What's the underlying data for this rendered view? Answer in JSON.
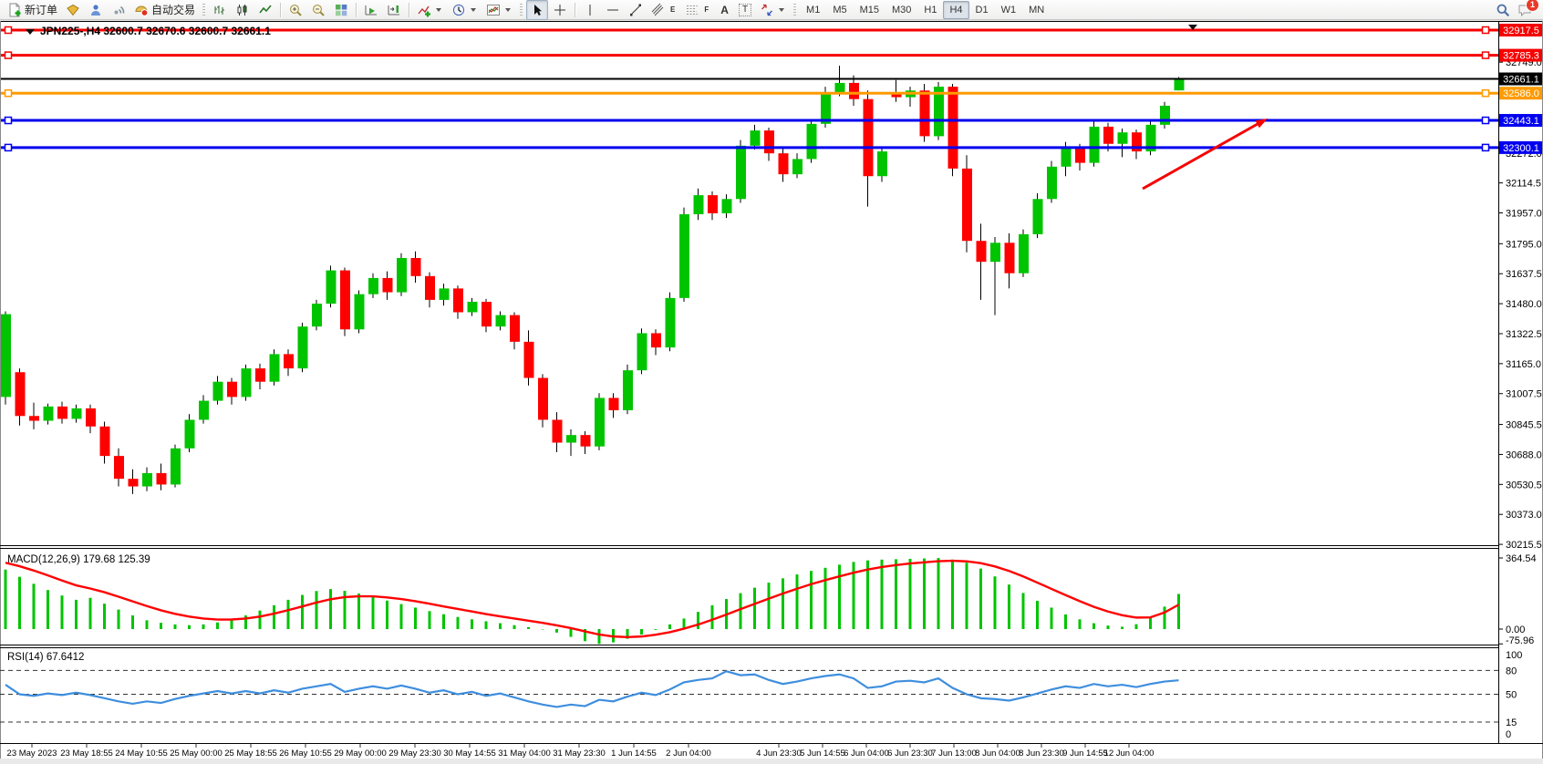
{
  "toolbar": {
    "new_order_label": "新订单",
    "autotrading_label": "自动交易",
    "timeframes": [
      "M1",
      "M5",
      "M15",
      "M30",
      "H1",
      "H4",
      "D1",
      "W1",
      "MN"
    ],
    "active_timeframe": "H4",
    "notification_count": "1",
    "tool_letters": {
      "channel": "E",
      "fibonacci": "F",
      "text": "A",
      "text_label": "T"
    }
  },
  "chart": {
    "title": "JPN225-,H4 32600.7 32670.6 32600.7 32661.1",
    "symbol": "JPN225-",
    "period": "H4",
    "ohlc": {
      "open": "32600.7",
      "high": "32670.6",
      "low": "32600.7",
      "close": "32661.1"
    },
    "levels": [
      {
        "label": "32917.5",
        "price": 32917.5,
        "color": "#f60000",
        "current": false
      },
      {
        "label": "32785.3",
        "price": 32785.3,
        "color": "#f60000",
        "current": false
      },
      {
        "label": "32661.1",
        "price": 32661.1,
        "color": "#000000",
        "current": true
      },
      {
        "label": "32586.0",
        "price": 32586.0,
        "color": "#ff9a00",
        "current": false
      },
      {
        "label": "32443.1",
        "price": 32443.1,
        "color": "#0000f0",
        "current": false
      },
      {
        "label": "32300.1",
        "price": 32300.1,
        "color": "#0000f0",
        "current": false
      }
    ],
    "axis_ticks": [
      "32749.0",
      "32272.0",
      "32114.5",
      "31957.0",
      "31795.0",
      "31637.5",
      "31480.0",
      "31322.5",
      "31165.0",
      "31007.5",
      "30845.5",
      "30688.0",
      "30530.5",
      "30373.0",
      "30215.5"
    ]
  },
  "macd": {
    "label": "MACD(12,26,9) 179.68 125.39",
    "axis": [
      "364.54",
      "0.00",
      "-75.96"
    ]
  },
  "rsi": {
    "label": "RSI(14) 67.6412",
    "axis": [
      "100",
      "80",
      "50",
      "15",
      "0"
    ]
  },
  "time_axis": [
    {
      "t": "23 May 2023",
      "x": 35
    },
    {
      "t": "23 May 18:55",
      "x": 95
    },
    {
      "t": "24 May 10:55",
      "x": 155
    },
    {
      "t": "25 May 00:00",
      "x": 215
    },
    {
      "t": "25 May 18:55",
      "x": 275
    },
    {
      "t": "26 May 10:55",
      "x": 335
    },
    {
      "t": "29 May 00:00",
      "x": 395
    },
    {
      "t": "29 May 23:30",
      "x": 455
    },
    {
      "t": "30 May 14:55",
      "x": 515
    },
    {
      "t": "31 May 04:00",
      "x": 575
    },
    {
      "t": "31 May 23:30",
      "x": 635
    },
    {
      "t": "1 Jun 14:55",
      "x": 695
    },
    {
      "t": "2 Jun 04:00",
      "x": 755
    },
    {
      "t": "4 Jun 23:30",
      "x": 854
    },
    {
      "t": "5 Jun 14:55",
      "x": 902
    },
    {
      "t": "6 Jun 04:00",
      "x": 950
    },
    {
      "t": "6 Jun 23:30",
      "x": 998
    },
    {
      "t": "7 Jun 13:00",
      "x": 1046
    },
    {
      "t": "8 Jun 04:00",
      "x": 1094
    },
    {
      "t": "8 Jun 23:30",
      "x": 1142
    },
    {
      "t": "9 Jun 14:55",
      "x": 1190
    },
    {
      "t": "12 Jun 04:00",
      "x": 1238
    }
  ],
  "chart_data": [
    {
      "type": "candlestick",
      "title": "JPN225- H4",
      "ylim": [
        30215.5,
        32917.5
      ],
      "levels": [
        32917.5,
        32785.3,
        32661.1,
        32586.0,
        32443.1,
        32300.1
      ],
      "candles": [
        [
          30990,
          31440,
          30950,
          31425
        ],
        [
          31120,
          31140,
          30840,
          30890
        ],
        [
          30890,
          30960,
          30820,
          30865
        ],
        [
          30865,
          30955,
          30845,
          30940
        ],
        [
          30940,
          30965,
          30850,
          30875
        ],
        [
          30875,
          30950,
          30855,
          30930
        ],
        [
          30930,
          30950,
          30800,
          30835
        ],
        [
          30835,
          30860,
          30640,
          30680
        ],
        [
          30680,
          30720,
          30520,
          30560
        ],
        [
          30560,
          30610,
          30480,
          30520
        ],
        [
          30520,
          30620,
          30495,
          30590
        ],
        [
          30590,
          30640,
          30500,
          30530
        ],
        [
          30530,
          30740,
          30515,
          30720
        ],
        [
          30720,
          30900,
          30700,
          30870
        ],
        [
          30870,
          31000,
          30850,
          30970
        ],
        [
          30970,
          31100,
          30950,
          31070
        ],
        [
          31070,
          31090,
          30950,
          30990
        ],
        [
          30990,
          31160,
          30970,
          31140
        ],
        [
          31140,
          31165,
          31030,
          31070
        ],
        [
          31070,
          31240,
          31050,
          31215
        ],
        [
          31215,
          31240,
          31100,
          31140
        ],
        [
          31140,
          31380,
          31120,
          31360
        ],
        [
          31360,
          31500,
          31340,
          31480
        ],
        [
          31480,
          31680,
          31460,
          31655
        ],
        [
          31655,
          31670,
          31310,
          31345
        ],
        [
          31345,
          31550,
          31325,
          31530
        ],
        [
          31530,
          31640,
          31510,
          31615
        ],
        [
          31615,
          31650,
          31500,
          31540
        ],
        [
          31540,
          31745,
          31520,
          31720
        ],
        [
          31720,
          31755,
          31590,
          31625
        ],
        [
          31625,
          31645,
          31460,
          31500
        ],
        [
          31500,
          31585,
          31470,
          31560
        ],
        [
          31560,
          31575,
          31400,
          31435
        ],
        [
          31435,
          31510,
          31415,
          31490
        ],
        [
          31490,
          31505,
          31330,
          31360
        ],
        [
          31360,
          31440,
          31340,
          31420
        ],
        [
          31420,
          31435,
          31240,
          31280
        ],
        [
          31280,
          31340,
          31050,
          31090
        ],
        [
          31090,
          31110,
          30830,
          30870
        ],
        [
          30870,
          30910,
          30700,
          30750
        ],
        [
          30750,
          30820,
          30680,
          30790
        ],
        [
          30790,
          30810,
          30690,
          30730
        ],
        [
          30730,
          31010,
          30710,
          30985
        ],
        [
          30985,
          31010,
          30880,
          30920
        ],
        [
          30920,
          31160,
          30900,
          31130
        ],
        [
          31130,
          31350,
          31110,
          31325
        ],
        [
          31325,
          31345,
          31210,
          31250
        ],
        [
          31250,
          31540,
          31230,
          31510
        ],
        [
          31510,
          31985,
          31490,
          31950
        ],
        [
          31950,
          32085,
          31920,
          32050
        ],
        [
          32050,
          32070,
          31920,
          31955
        ],
        [
          31955,
          32055,
          31930,
          32030
        ],
        [
          32030,
          32340,
          32010,
          32310
        ],
        [
          32310,
          32420,
          32290,
          32390
        ],
        [
          32390,
          32405,
          32230,
          32270
        ],
        [
          32270,
          32300,
          32120,
          32160
        ],
        [
          32160,
          32270,
          32140,
          32240
        ],
        [
          32240,
          32450,
          32220,
          32425
        ],
        [
          32425,
          32620,
          32405,
          32590
        ],
        [
          32590,
          32730,
          32570,
          32640
        ],
        [
          32640,
          32680,
          32520,
          32555
        ],
        [
          32555,
          32600,
          31990,
          32150
        ],
        [
          32150,
          32300,
          32120,
          32280
        ],
        [
          32590,
          32655,
          32540,
          32565
        ],
        [
          32565,
          32620,
          32515,
          32600
        ],
        [
          32600,
          32635,
          32330,
          32360
        ],
        [
          32360,
          32645,
          32340,
          32620
        ],
        [
          32620,
          32635,
          32150,
          32190
        ],
        [
          32190,
          32260,
          31750,
          31810
        ],
        [
          31810,
          31900,
          31500,
          31700
        ],
        [
          31700,
          31830,
          31420,
          31800
        ],
        [
          31800,
          31850,
          31560,
          31640
        ],
        [
          31640,
          31870,
          31620,
          31845
        ],
        [
          31845,
          32060,
          31825,
          32030
        ],
        [
          32030,
          32230,
          32010,
          32200
        ],
        [
          32200,
          32330,
          32150,
          32300
        ],
        [
          32300,
          32320,
          32180,
          32220
        ],
        [
          32220,
          32440,
          32200,
          32410
        ],
        [
          32410,
          32430,
          32280,
          32320
        ],
        [
          32320,
          32400,
          32250,
          32380
        ],
        [
          32380,
          32395,
          32240,
          32280
        ],
        [
          32280,
          32450,
          32260,
          32420
        ],
        [
          32420,
          32540,
          32400,
          32520
        ],
        [
          32600.7,
          32670.6,
          32600.7,
          32661.1
        ]
      ]
    },
    {
      "type": "bar",
      "name": "MACD(12,26,9)",
      "current": [
        179.68,
        125.39
      ],
      "ylim": [
        -75.96,
        364.54
      ],
      "values": [
        305,
        268,
        232,
        200,
        172,
        150,
        160,
        130,
        100,
        70,
        45,
        32,
        24,
        20,
        24,
        34,
        50,
        70,
        95,
        122,
        150,
        175,
        195,
        205,
        196,
        182,
        165,
        146,
        128,
        110,
        92,
        76,
        62,
        50,
        40,
        30,
        20,
        10,
        -2,
        -18,
        -40,
        -62,
        -76,
        -68,
        -50,
        -28,
        -4,
        24,
        54,
        88,
        122,
        154,
        184,
        212,
        238,
        260,
        280,
        298,
        314,
        330,
        344,
        352,
        356,
        358,
        360,
        362,
        364,
        356,
        340,
        310,
        270,
        228,
        185,
        145,
        110,
        75,
        50,
        30,
        18,
        12,
        25,
        60,
        115,
        180
      ],
      "signal": [
        340,
        322,
        300,
        275,
        249,
        224,
        208,
        189,
        166,
        142,
        118,
        96,
        78,
        64,
        54,
        49,
        49,
        54,
        64,
        79,
        97,
        116,
        136,
        153,
        164,
        168,
        168,
        162,
        154,
        143,
        130,
        116,
        103,
        90,
        77,
        65,
        54,
        43,
        32,
        19,
        5,
        -12,
        -28,
        -38,
        -41,
        -38,
        -29,
        -16,
        2,
        23,
        48,
        74,
        102,
        129,
        156,
        182,
        207,
        230,
        251,
        270,
        289,
        305,
        318,
        328,
        336,
        342,
        348,
        350,
        347,
        338,
        321,
        298,
        270,
        238,
        206,
        174,
        143,
        114,
        90,
        71,
        59,
        60,
        85,
        125
      ]
    },
    {
      "type": "line",
      "name": "RSI(14)",
      "current": 67.6412,
      "range": [
        0,
        100
      ],
      "levels": [
        80,
        50,
        15
      ],
      "values": [
        62,
        50,
        48,
        51,
        49,
        52,
        49,
        45,
        41,
        38,
        41,
        39,
        44,
        48,
        51,
        54,
        51,
        54,
        51,
        55,
        52,
        57,
        60,
        63,
        53,
        57,
        60,
        57,
        61,
        57,
        52,
        55,
        50,
        53,
        48,
        51,
        46,
        41,
        37,
        34,
        37,
        35,
        43,
        41,
        47,
        52,
        49,
        56,
        65,
        68,
        70,
        79,
        74,
        75,
        68,
        63,
        66,
        70,
        73,
        75,
        70,
        58,
        60,
        66,
        67,
        65,
        70,
        58,
        50,
        45,
        44,
        42,
        46,
        51,
        56,
        60,
        58,
        63,
        60,
        62,
        59,
        63,
        66,
        67.6
      ]
    }
  ]
}
